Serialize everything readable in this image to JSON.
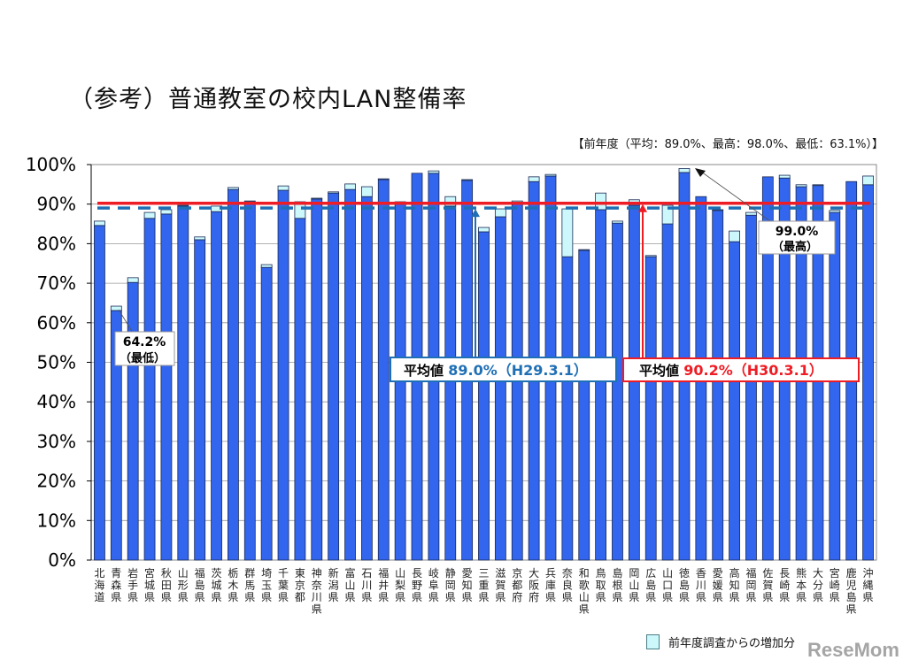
{
  "title": "（参考）普通教室の校内LAN整備率",
  "note": "【前年度（平均：89.0%、最高：98.0%、最低：63.1%）】",
  "legend": {
    "increase_label": "前年度調査からの増加分"
  },
  "watermark": "ReseMom",
  "colors": {
    "bar": "#3366ee",
    "increase": "#ccf8fc",
    "current_avg_line": "#ee1c24",
    "prev_avg_line": "#1f6fb5"
  },
  "chart_data": {
    "type": "bar",
    "stacked": true,
    "title": "（参考）普通教室の校内LAN整備率",
    "ylim": [
      0,
      100
    ],
    "yticks": [
      "0%",
      "10%",
      "20%",
      "30%",
      "40%",
      "50%",
      "60%",
      "70%",
      "80%",
      "90%",
      "100%"
    ],
    "grid": true,
    "categories": [
      "北海道",
      "青森県",
      "岩手県",
      "宮城県",
      "秋田県",
      "山形県",
      "福島県",
      "茨城県",
      "栃木県",
      "群馬県",
      "埼玉県",
      "千葉県",
      "東京都",
      "神奈川県",
      "新潟県",
      "富山県",
      "石川県",
      "福井県",
      "山梨県",
      "長野県",
      "岐阜県",
      "静岡県",
      "愛知県",
      "三重県",
      "滋賀県",
      "京都府",
      "大阪府",
      "兵庫県",
      "奈良県",
      "和歌山県",
      "鳥取県",
      "島根県",
      "岡山県",
      "広島県",
      "山口県",
      "徳島県",
      "香川県",
      "愛媛県",
      "高知県",
      "福岡県",
      "佐賀県",
      "長崎県",
      "熊本県",
      "大分県",
      "宮崎県",
      "鹿児島県",
      "沖縄県"
    ],
    "series": [
      {
        "name": "前年度",
        "values": [
          84.6,
          63.1,
          70.2,
          86.4,
          87.5,
          89.5,
          81.0,
          88.1,
          93.7,
          90.6,
          74.0,
          93.5,
          86.4,
          91.3,
          92.8,
          93.7,
          91.9,
          96.2,
          90.4,
          97.8,
          97.8,
          89.5,
          96.0,
          83.0,
          86.8,
          90.5,
          95.7,
          97.1,
          76.7,
          78.3,
          88.6,
          85.2,
          89.7,
          76.7,
          85.0,
          98.0,
          91.9,
          88.4,
          80.5,
          87.2,
          96.9,
          96.6,
          94.4,
          94.7,
          87.9,
          95.7,
          94.9
        ]
      },
      {
        "name": "前年度調査からの増加分",
        "values": [
          1.1,
          1.1,
          1.2,
          1.5,
          1.1,
          0.2,
          0.7,
          1.4,
          0.5,
          0.2,
          0.7,
          1.1,
          4.2,
          0.2,
          0.3,
          1.4,
          2.5,
          0.2,
          0.2,
          0.0,
          0.6,
          2.4,
          0.2,
          1.1,
          2.0,
          0.3,
          1.2,
          0.4,
          12.1,
          0.2,
          4.2,
          0.5,
          1.4,
          0.3,
          4.7,
          1.0,
          0.0,
          0.2,
          2.7,
          0.7,
          0.0,
          0.7,
          0.5,
          0.2,
          0.5,
          0.0,
          2.2
        ]
      }
    ],
    "reference_lines": [
      {
        "label_prefix": "平均値",
        "value_label": "89.0%（H29.3.1）",
        "value": 89.0,
        "style": "dashed"
      },
      {
        "label_prefix": "平均値",
        "value_label": "90.2%（H30.3.1）",
        "value": 90.2,
        "style": "solid"
      }
    ],
    "annotations": [
      {
        "value": "64.2%",
        "label": "（最低）",
        "category": "青森県"
      },
      {
        "value": "99.0%",
        "label": "（最高）",
        "category": "徳島県"
      }
    ]
  }
}
